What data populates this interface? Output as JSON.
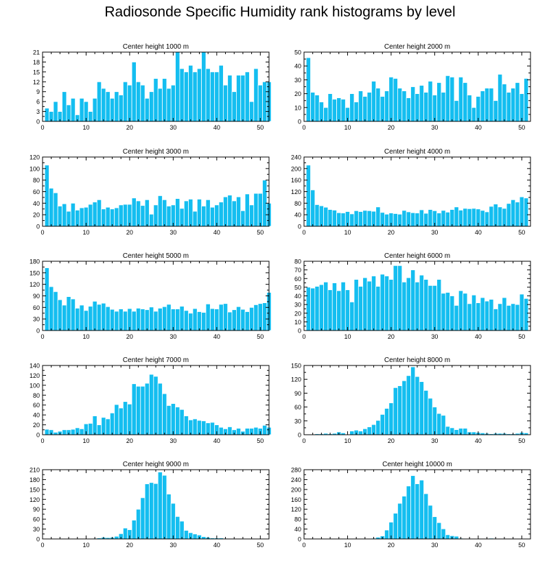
{
  "title": "Radiosonde Specific Humidity rank histograms by level",
  "colors": {
    "bar": "#14BEF0",
    "bar_edge": "#ffffff",
    "axis": "#000000"
  },
  "chart_data": [
    {
      "type": "bar",
      "title": "Center height 1000 m",
      "xlim": [
        0,
        52
      ],
      "ylim": [
        0,
        21
      ],
      "xticks": [
        0,
        10,
        20,
        30,
        40,
        50
      ],
      "yticks": [
        0,
        3,
        6,
        9,
        12,
        15,
        18,
        21
      ],
      "x": [
        1,
        2,
        3,
        4,
        5,
        6,
        7,
        8,
        9,
        10,
        11,
        12,
        13,
        14,
        15,
        16,
        17,
        18,
        19,
        20,
        21,
        22,
        23,
        24,
        25,
        26,
        27,
        28,
        29,
        30,
        31,
        32,
        33,
        34,
        35,
        36,
        37,
        38,
        39,
        40,
        41,
        42,
        43,
        44,
        45,
        46,
        47,
        48,
        49,
        50,
        51,
        52
      ],
      "values": [
        4,
        3,
        6,
        3,
        9,
        5,
        7,
        2,
        7,
        6,
        3,
        7,
        12,
        10,
        9,
        7,
        9,
        8,
        12,
        11,
        18,
        12,
        11,
        7,
        9,
        13,
        10,
        13,
        10,
        11,
        21,
        16,
        15,
        17,
        15,
        16,
        21,
        16,
        15,
        15,
        17,
        11,
        14,
        9,
        14,
        14,
        15,
        6,
        16,
        11,
        12,
        12
      ]
    },
    {
      "type": "bar",
      "title": "Center height 2000 m",
      "xlim": [
        0,
        52
      ],
      "ylim": [
        0,
        50
      ],
      "xticks": [
        0,
        10,
        20,
        30,
        40,
        50
      ],
      "yticks": [
        0,
        10,
        20,
        30,
        40,
        50
      ],
      "x": [
        1,
        2,
        3,
        4,
        5,
        6,
        7,
        8,
        9,
        10,
        11,
        12,
        13,
        14,
        15,
        16,
        17,
        18,
        19,
        20,
        21,
        22,
        23,
        24,
        25,
        26,
        27,
        28,
        29,
        30,
        31,
        32,
        33,
        34,
        35,
        36,
        37,
        38,
        39,
        40,
        41,
        42,
        43,
        44,
        45,
        46,
        47,
        48,
        49,
        50,
        51
      ],
      "values": [
        46,
        21,
        19,
        14,
        10,
        20,
        16,
        17,
        16,
        10,
        20,
        14,
        22,
        18,
        21,
        29,
        24,
        18,
        22,
        32,
        31,
        24,
        22,
        17,
        25,
        20,
        26,
        21,
        29,
        19,
        28,
        21,
        33,
        32,
        15,
        32,
        28,
        19,
        10,
        18,
        22,
        24,
        24,
        15,
        34,
        27,
        21,
        24,
        28,
        20,
        31
      ]
    },
    {
      "type": "bar",
      "title": "Center height 3000 m",
      "xlim": [
        0,
        52
      ],
      "ylim": [
        0,
        120
      ],
      "xticks": [
        0,
        10,
        20,
        30,
        40,
        50
      ],
      "yticks": [
        0,
        20,
        40,
        60,
        80,
        100,
        120
      ],
      "x": [
        1,
        2,
        3,
        4,
        5,
        6,
        7,
        8,
        9,
        10,
        11,
        12,
        13,
        14,
        15,
        16,
        17,
        18,
        19,
        20,
        21,
        22,
        23,
        24,
        25,
        26,
        27,
        28,
        29,
        30,
        31,
        32,
        33,
        34,
        35,
        36,
        37,
        38,
        39,
        40,
        41,
        42,
        43,
        44,
        45,
        46,
        47,
        48,
        49,
        50,
        51,
        52
      ],
      "values": [
        106,
        66,
        58,
        35,
        39,
        26,
        40,
        28,
        32,
        33,
        38,
        42,
        46,
        30,
        33,
        30,
        32,
        37,
        38,
        38,
        49,
        44,
        36,
        46,
        21,
        37,
        53,
        46,
        35,
        37,
        48,
        31,
        44,
        47,
        26,
        47,
        35,
        46,
        33,
        37,
        42,
        51,
        54,
        44,
        51,
        27,
        56,
        37,
        57,
        57,
        80,
        40
      ]
    },
    {
      "type": "bar",
      "title": "Center height 4000 m",
      "xlim": [
        0,
        52
      ],
      "ylim": [
        0,
        240
      ],
      "xticks": [
        0,
        10,
        20,
        30,
        40,
        50
      ],
      "yticks": [
        0,
        40,
        80,
        120,
        160,
        200,
        240
      ],
      "x": [
        1,
        2,
        3,
        4,
        5,
        6,
        7,
        8,
        9,
        10,
        11,
        12,
        13,
        14,
        15,
        16,
        17,
        18,
        19,
        20,
        21,
        22,
        23,
        24,
        25,
        26,
        27,
        28,
        29,
        30,
        31,
        32,
        33,
        34,
        35,
        36,
        37,
        38,
        39,
        40,
        41,
        42,
        43,
        44,
        45,
        46,
        47,
        48,
        49,
        50,
        51
      ],
      "values": [
        212,
        126,
        75,
        71,
        66,
        58,
        56,
        47,
        46,
        51,
        43,
        54,
        51,
        55,
        54,
        52,
        67,
        48,
        42,
        46,
        44,
        42,
        55,
        50,
        47,
        46,
        57,
        45,
        58,
        54,
        46,
        55,
        49,
        58,
        67,
        56,
        62,
        61,
        62,
        60,
        55,
        50,
        69,
        77,
        67,
        62,
        79,
        92,
        84,
        102,
        98
      ]
    },
    {
      "type": "bar",
      "title": "Center height 5000 m",
      "xlim": [
        0,
        52
      ],
      "ylim": [
        0,
        180
      ],
      "xticks": [
        0,
        10,
        20,
        30,
        40,
        50
      ],
      "yticks": [
        0,
        30,
        60,
        90,
        120,
        150,
        180
      ],
      "x": [
        1,
        2,
        3,
        4,
        5,
        6,
        7,
        8,
        9,
        10,
        11,
        12,
        13,
        14,
        15,
        16,
        17,
        18,
        19,
        20,
        21,
        22,
        23,
        24,
        25,
        26,
        27,
        28,
        29,
        30,
        31,
        32,
        33,
        34,
        35,
        36,
        37,
        38,
        39,
        40,
        41,
        42,
        43,
        44,
        45,
        46,
        47,
        48,
        49,
        50,
        51,
        52
      ],
      "values": [
        163,
        114,
        101,
        80,
        66,
        88,
        82,
        58,
        66,
        52,
        63,
        76,
        68,
        71,
        62,
        55,
        50,
        56,
        50,
        57,
        50,
        58,
        56,
        54,
        61,
        50,
        58,
        62,
        68,
        56,
        56,
        63,
        52,
        45,
        57,
        49,
        47,
        69,
        57,
        56,
        68,
        70,
        48,
        54,
        62,
        55,
        49,
        60,
        67,
        70,
        72,
        99
      ]
    },
    {
      "type": "bar",
      "title": "Center height 6000 m",
      "xlim": [
        0,
        52
      ],
      "ylim": [
        0,
        80
      ],
      "xticks": [
        0,
        10,
        20,
        30,
        40,
        50
      ],
      "yticks": [
        0,
        10,
        20,
        30,
        40,
        50,
        60,
        70,
        80
      ],
      "x": [
        1,
        2,
        3,
        4,
        5,
        6,
        7,
        8,
        9,
        10,
        11,
        12,
        13,
        14,
        15,
        16,
        17,
        18,
        19,
        20,
        21,
        22,
        23,
        24,
        25,
        26,
        27,
        28,
        29,
        30,
        31,
        32,
        33,
        34,
        35,
        36,
        37,
        38,
        39,
        40,
        41,
        42,
        43,
        44,
        45,
        46,
        47,
        48,
        49,
        50,
        51
      ],
      "values": [
        50,
        49,
        51,
        53,
        56,
        47,
        55,
        46,
        56,
        47,
        33,
        59,
        51,
        61,
        57,
        63,
        51,
        65,
        63,
        59,
        75,
        75,
        56,
        61,
        70,
        56,
        64,
        59,
        52,
        52,
        59,
        43,
        44,
        40,
        29,
        46,
        43,
        31,
        41,
        32,
        38,
        34,
        36,
        25,
        31,
        38,
        29,
        31,
        30,
        42,
        37
      ]
    },
    {
      "type": "bar",
      "title": "Center height 7000 m",
      "xlim": [
        0,
        52
      ],
      "ylim": [
        0,
        140
      ],
      "xticks": [
        0,
        10,
        20,
        30,
        40,
        50
      ],
      "yticks": [
        0,
        20,
        40,
        60,
        80,
        100,
        120,
        140
      ],
      "x": [
        1,
        2,
        3,
        4,
        5,
        6,
        7,
        8,
        9,
        10,
        11,
        12,
        13,
        14,
        15,
        16,
        17,
        18,
        19,
        20,
        21,
        22,
        23,
        24,
        25,
        26,
        27,
        28,
        29,
        30,
        31,
        32,
        33,
        34,
        35,
        36,
        37,
        38,
        39,
        40,
        41,
        42,
        43,
        44,
        45,
        46,
        47,
        48,
        49,
        50,
        51,
        52
      ],
      "values": [
        11,
        10,
        5,
        7,
        10,
        10,
        11,
        14,
        12,
        22,
        23,
        38,
        20,
        35,
        32,
        44,
        61,
        54,
        67,
        62,
        103,
        98,
        98,
        104,
        122,
        118,
        104,
        83,
        59,
        63,
        56,
        51,
        38,
        30,
        32,
        29,
        28,
        24,
        25,
        20,
        15,
        12,
        16,
        10,
        13,
        7,
        13,
        13,
        15,
        13,
        19,
        15
      ]
    },
    {
      "type": "bar",
      "title": "Center height 8000 m",
      "xlim": [
        0,
        52
      ],
      "ylim": [
        0,
        150
      ],
      "xticks": [
        0,
        10,
        20,
        30,
        40,
        50
      ],
      "yticks": [
        0,
        30,
        60,
        90,
        120,
        150
      ],
      "x": [
        1,
        2,
        3,
        4,
        5,
        6,
        7,
        8,
        9,
        10,
        11,
        12,
        13,
        14,
        15,
        16,
        17,
        18,
        19,
        20,
        21,
        22,
        23,
        24,
        25,
        26,
        27,
        28,
        29,
        30,
        31,
        32,
        33,
        34,
        35,
        36,
        37,
        38,
        39,
        40,
        41,
        42,
        43,
        44,
        45,
        46,
        47,
        48,
        49,
        50,
        51
      ],
      "values": [
        0,
        1,
        2,
        2,
        3,
        2,
        3,
        6,
        4,
        1,
        8,
        10,
        8,
        13,
        17,
        22,
        31,
        44,
        57,
        69,
        102,
        106,
        117,
        128,
        147,
        126,
        115,
        96,
        79,
        60,
        46,
        42,
        18,
        15,
        11,
        14,
        14,
        6,
        6,
        5,
        4,
        3,
        2,
        3,
        3,
        3,
        2,
        2,
        3,
        5,
        4
      ]
    },
    {
      "type": "bar",
      "title": "Center height 9000 m",
      "xlim": [
        0,
        52
      ],
      "ylim": [
        0,
        210
      ],
      "xticks": [
        0,
        10,
        20,
        30,
        40,
        50
      ],
      "yticks": [
        0,
        30,
        60,
        90,
        120,
        150,
        180,
        210
      ],
      "x": [
        1,
        2,
        3,
        4,
        5,
        6,
        7,
        8,
        9,
        10,
        11,
        12,
        13,
        14,
        15,
        16,
        17,
        18,
        19,
        20,
        21,
        22,
        23,
        24,
        25,
        26,
        27,
        28,
        29,
        30,
        31,
        32,
        33,
        34,
        35,
        36,
        37,
        38,
        39,
        40,
        41,
        42,
        43,
        44,
        45,
        46,
        47,
        48,
        49,
        50,
        51
      ],
      "values": [
        0,
        0,
        0,
        0,
        0,
        0,
        0,
        0,
        0,
        1,
        1,
        2,
        3,
        5,
        4,
        5,
        8,
        16,
        33,
        28,
        57,
        90,
        125,
        167,
        171,
        168,
        203,
        193,
        136,
        108,
        68,
        54,
        26,
        19,
        15,
        12,
        7,
        5,
        3,
        3,
        3,
        2,
        1,
        1,
        1,
        0,
        0,
        1,
        0,
        0,
        1
      ]
    },
    {
      "type": "bar",
      "title": "Center height 10000 m",
      "xlim": [
        0,
        52
      ],
      "ylim": [
        0,
        280
      ],
      "xticks": [
        0,
        10,
        20,
        30,
        40,
        50
      ],
      "yticks": [
        0,
        40,
        80,
        120,
        160,
        200,
        240,
        280
      ],
      "x": [
        1,
        2,
        3,
        4,
        5,
        6,
        7,
        8,
        9,
        10,
        11,
        12,
        13,
        14,
        15,
        16,
        17,
        18,
        19,
        20,
        21,
        22,
        23,
        24,
        25,
        26,
        27,
        28,
        29,
        30,
        31,
        32,
        33,
        34,
        35,
        36,
        37,
        38,
        39,
        40,
        41,
        42,
        43,
        44,
        45,
        46,
        47,
        48,
        49,
        50,
        51
      ],
      "values": [
        0,
        0,
        0,
        0,
        0,
        0,
        0,
        0,
        0,
        0,
        0,
        0,
        0,
        1,
        2,
        3,
        7,
        12,
        36,
        68,
        104,
        144,
        173,
        214,
        256,
        223,
        238,
        183,
        136,
        90,
        66,
        41,
        17,
        13,
        11,
        3,
        2,
        2,
        1,
        1,
        1,
        1,
        3,
        2,
        0,
        1,
        0,
        0,
        0,
        0,
        0
      ]
    }
  ]
}
